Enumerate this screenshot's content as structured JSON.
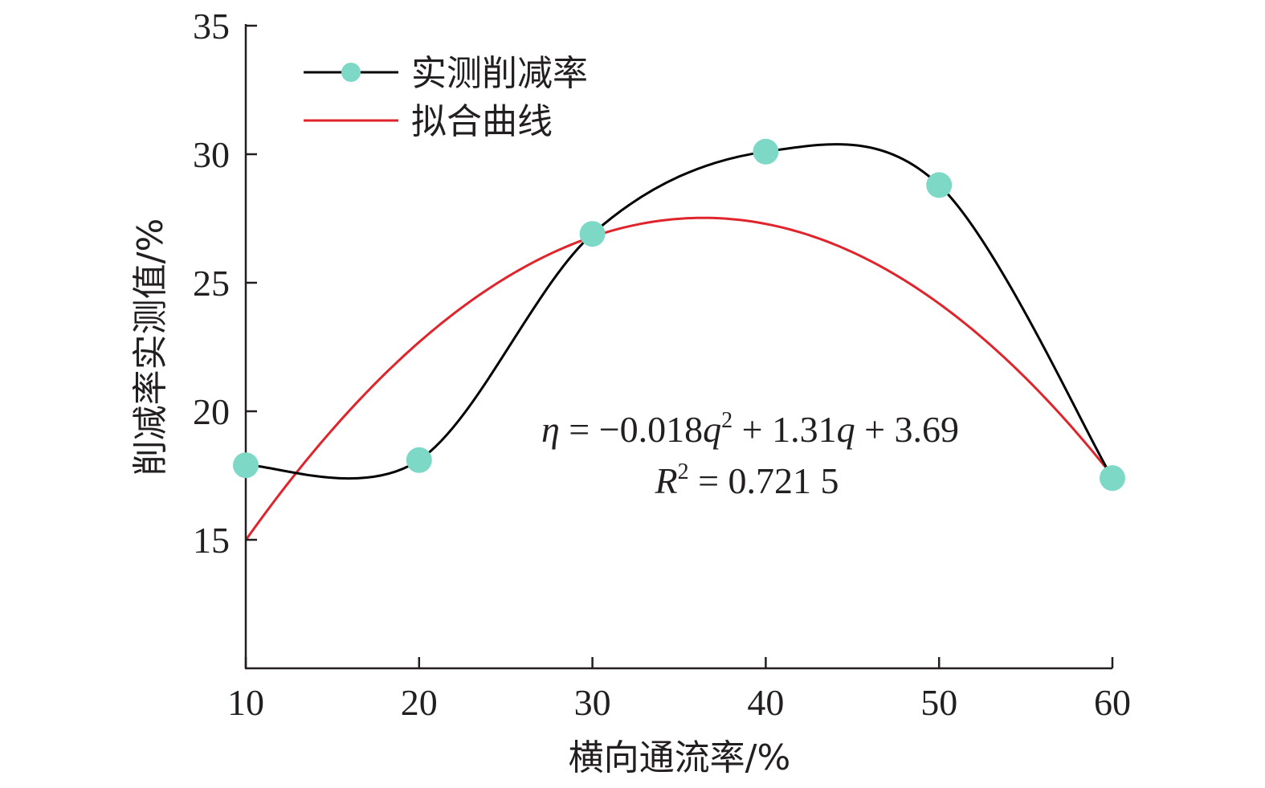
{
  "chart_data": {
    "type": "line",
    "xlabel": "横向通流率/%",
    "ylabel": "削减率实测值/%",
    "xlim": [
      10,
      60
    ],
    "ylim": [
      10,
      35
    ],
    "xticks": [
      "10",
      "20",
      "30",
      "40",
      "50",
      "60"
    ],
    "yticks": [
      "15",
      "20",
      "25",
      "30",
      "35"
    ],
    "legend_position": "top-left",
    "series": [
      {
        "name": "实测削减率",
        "x": [
          10,
          20,
          30,
          40,
          50,
          60
        ],
        "values": [
          17.9,
          18.1,
          26.9,
          30.1,
          28.8,
          17.4
        ],
        "line_color": "#000000",
        "marker_color": "#7dd9c5",
        "smooth": true
      },
      {
        "name": "拟合曲线",
        "fit_coefficients": {
          "a": -0.018,
          "b": 1.31,
          "c": 3.69
        },
        "line_color": "#e0242b"
      }
    ],
    "annotation": {
      "equation": {
        "eta": "η",
        "eq_part1": " = −0.018",
        "q1": "q",
        "exp1": "2",
        "eq_part2": " + 1.31",
        "q2": "q",
        "eq_part3": " + 3.69"
      },
      "r2": {
        "r": "R",
        "exp": "2",
        "value": " = 0.721 5"
      }
    }
  }
}
